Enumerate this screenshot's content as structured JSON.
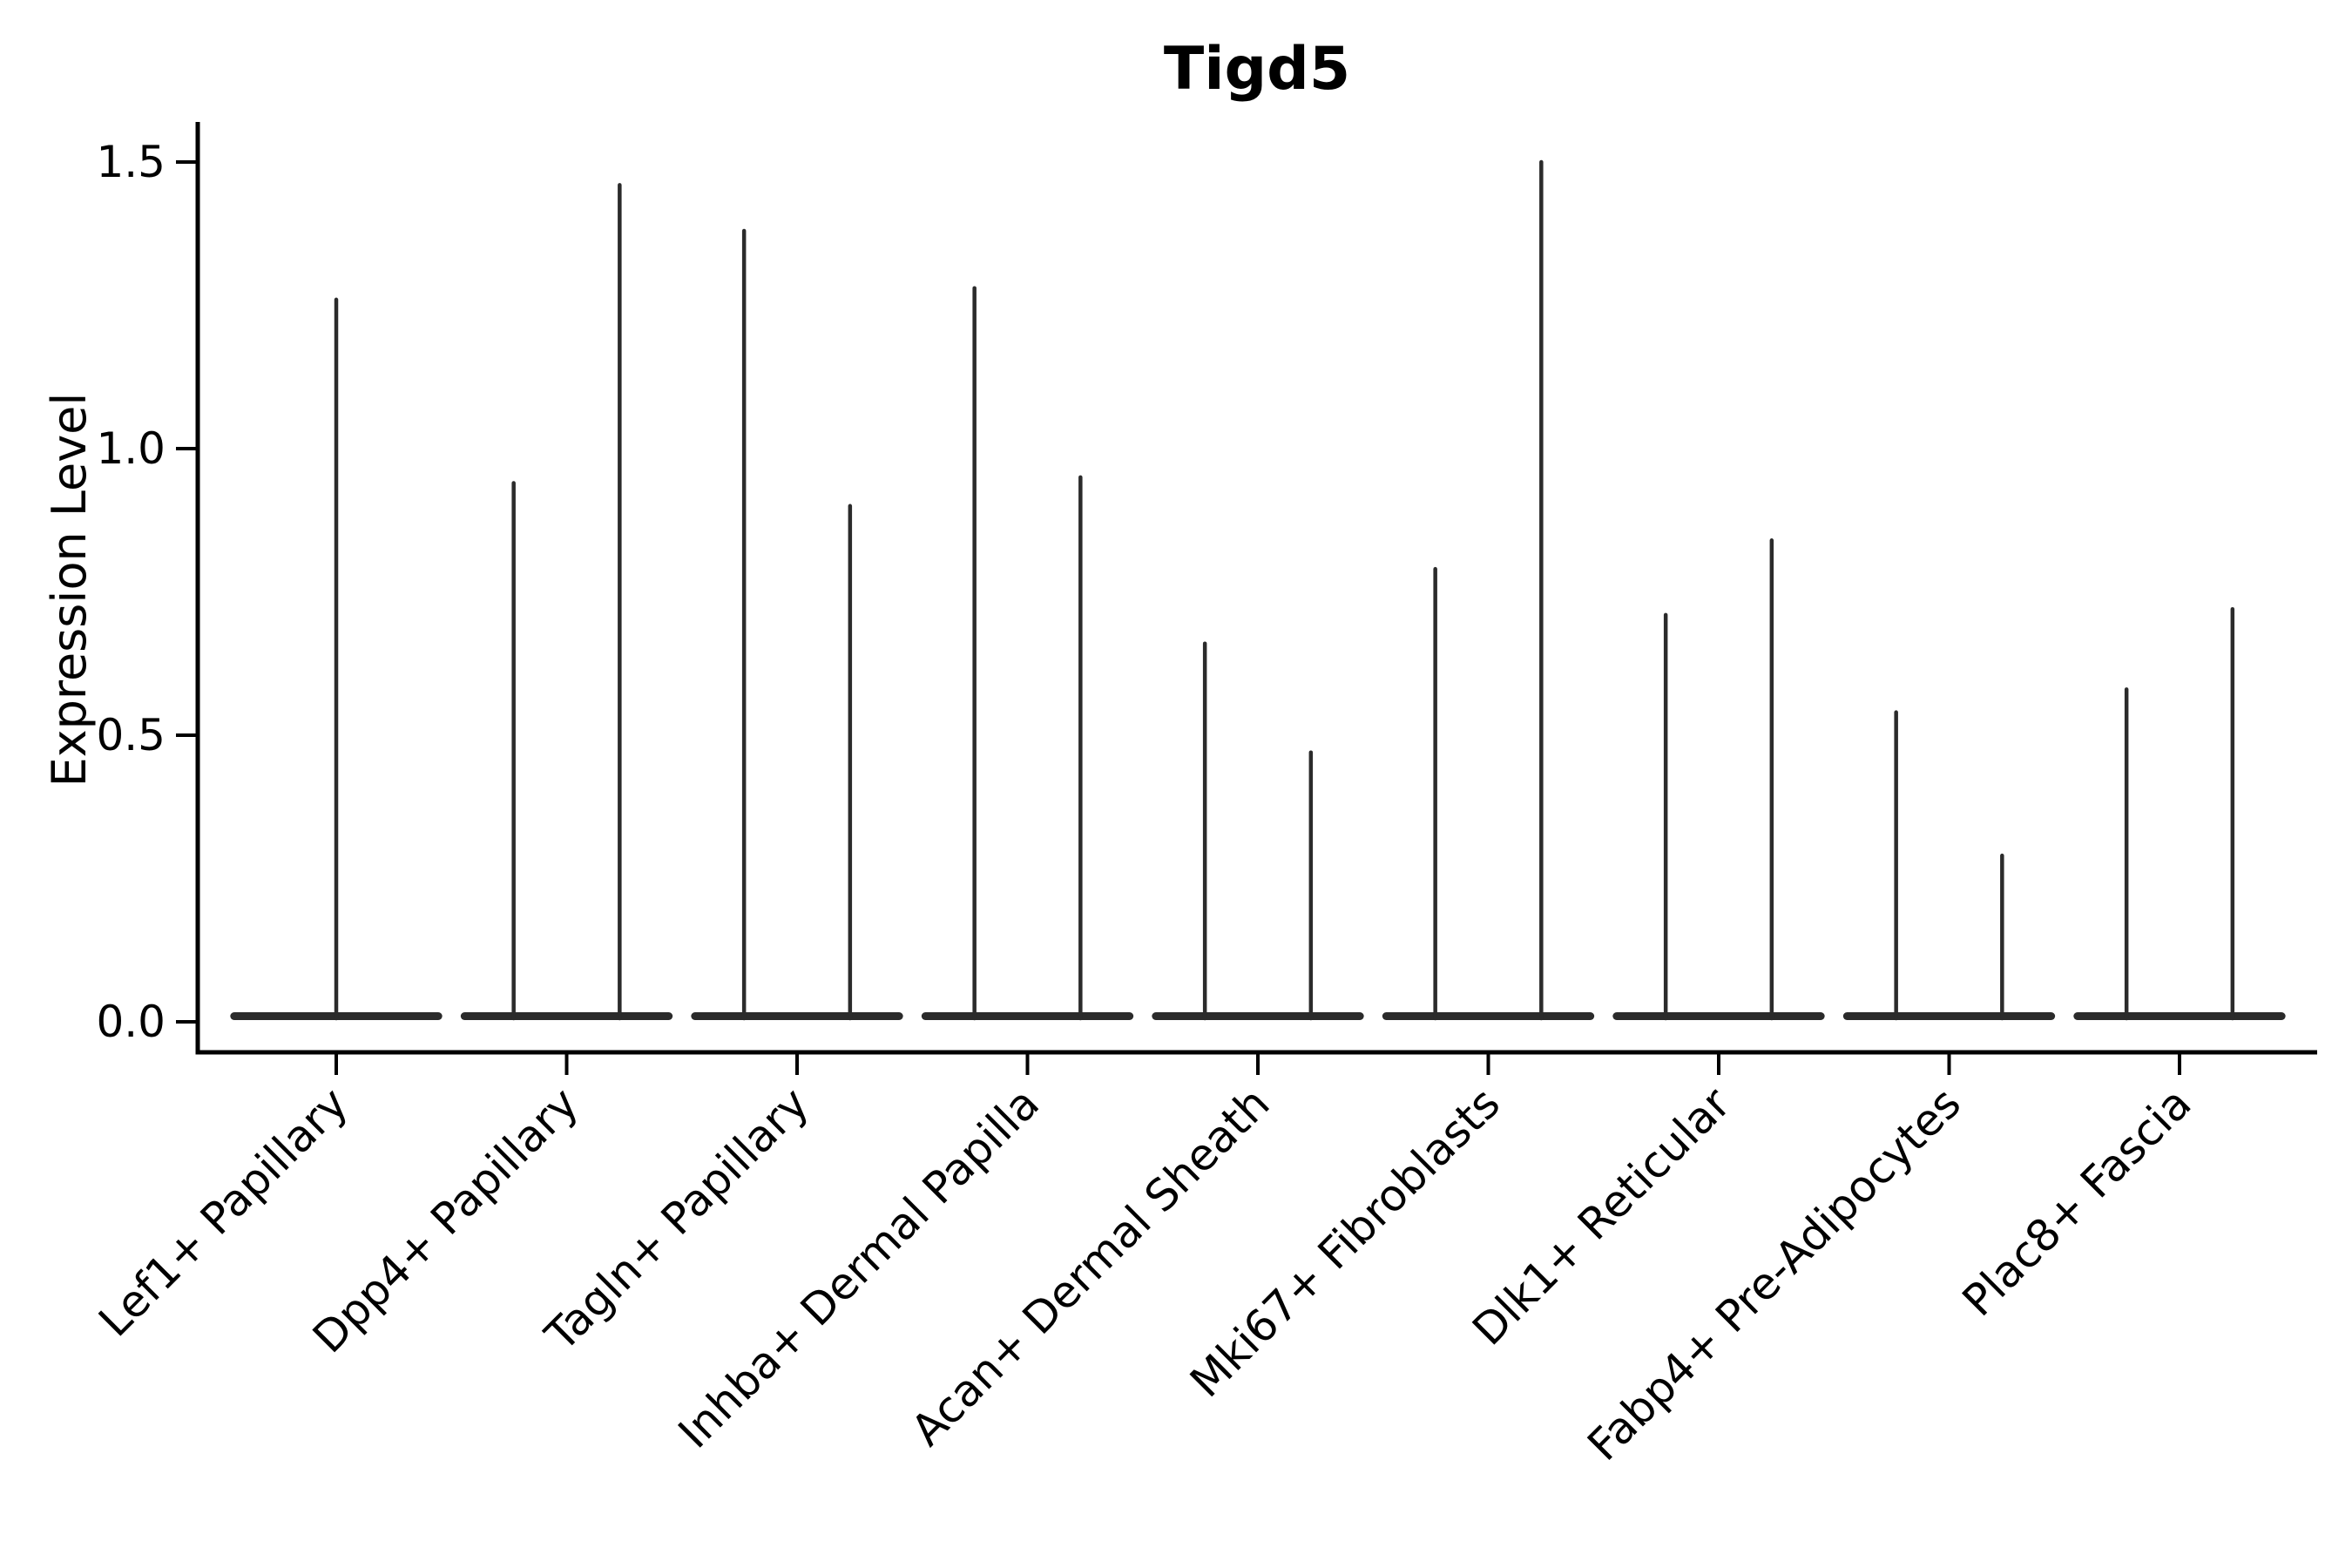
{
  "chart_data": {
    "type": "violin",
    "title": "Tigd5",
    "ylabel": "Expression Level",
    "xlabel": "",
    "ylim": [
      -0.055,
      1.575
    ],
    "yticks": [
      0.0,
      0.5,
      1.0,
      1.5
    ],
    "ytick_labels": [
      "0.0",
      "0.5",
      "1.0",
      "1.5"
    ],
    "grid": false,
    "legend": "none",
    "background": "#ffffff",
    "categories": [
      "Lef1+ Papillary",
      "Dpp4+ Papillary",
      "Tagln+ Papillary",
      "Inhba+ Dermal Papilla",
      "Acan+ Dermal Sheath",
      "Mki67+ Fibroblasts",
      "Dlk1+ Reticular",
      "Fabp4+ Pre-Adipocytes",
      "Plac8+ Fascia"
    ],
    "violins": [
      {
        "category": "Lef1+ Papillary",
        "spikes": [
          {
            "offset": 0.0,
            "max": 1.26
          }
        ]
      },
      {
        "category": "Dpp4+ Papillary",
        "spikes": [
          {
            "offset": -0.23,
            "max": 0.94
          },
          {
            "offset": 0.23,
            "max": 1.46
          }
        ]
      },
      {
        "category": "Tagln+ Papillary",
        "spikes": [
          {
            "offset": -0.23,
            "max": 1.38
          },
          {
            "offset": 0.23,
            "max": 0.9
          }
        ]
      },
      {
        "category": "Inhba+ Dermal Papilla",
        "spikes": [
          {
            "offset": -0.23,
            "max": 1.28
          },
          {
            "offset": 0.23,
            "max": 0.95
          }
        ]
      },
      {
        "category": "Acan+ Dermal Sheath",
        "spikes": [
          {
            "offset": -0.23,
            "max": 0.66
          },
          {
            "offset": 0.23,
            "max": 0.47
          }
        ]
      },
      {
        "category": "Mki67+ Fibroblasts",
        "spikes": [
          {
            "offset": -0.23,
            "max": 0.79
          },
          {
            "offset": 0.23,
            "max": 1.5
          }
        ]
      },
      {
        "category": "Dlk1+ Reticular",
        "spikes": [
          {
            "offset": -0.23,
            "max": 0.71
          },
          {
            "offset": 0.23,
            "max": 0.84
          }
        ]
      },
      {
        "category": "Fabp4+ Pre-Adipocytes",
        "spikes": [
          {
            "offset": -0.23,
            "max": 0.54
          },
          {
            "offset": 0.23,
            "max": 0.29
          }
        ]
      },
      {
        "category": "Plac8+ Fascia",
        "spikes": [
          {
            "offset": -0.23,
            "max": 0.58
          },
          {
            "offset": 0.23,
            "max": 0.72
          }
        ]
      }
    ],
    "violin_base_halfwidth": 0.46,
    "style_note": "Each violin collapses to a flat horizontal bar at expression 0 with a thin vertical spike reaching the category maximum; first category has a single centered spike, all others have two spikes."
  },
  "colors": {
    "violin": "#2b2b2b",
    "axis": "#000000",
    "text": "#000000",
    "background": "#ffffff"
  }
}
